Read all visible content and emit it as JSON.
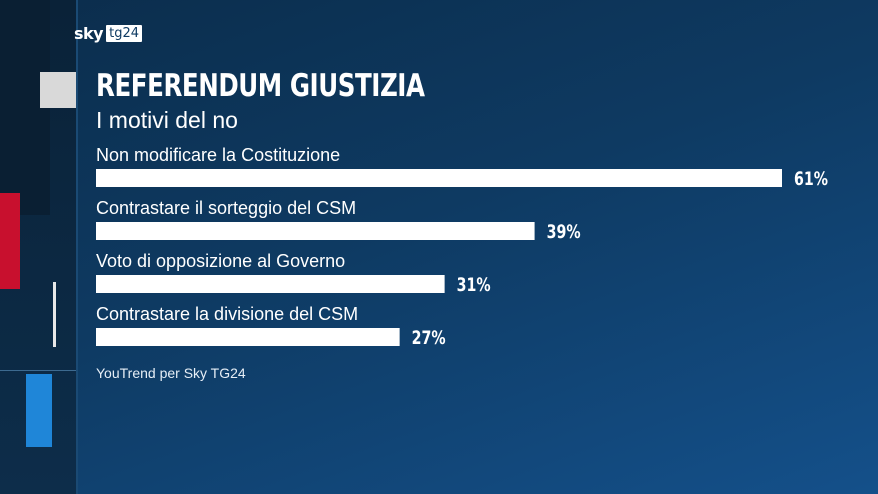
{
  "header": {
    "logo_sky": "sky",
    "logo_tg24": "tg24",
    "title": "REFERENDUM GIUSTIZIA",
    "subtitle": "I motivi del no"
  },
  "source": "YouTrend per Sky TG24",
  "colors": {
    "bar": "#ffffff",
    "accent_red": "#c8102e",
    "accent_blue": "#1f86d8",
    "background": "#0e3a62"
  },
  "chart_data": {
    "type": "bar",
    "orientation": "horizontal",
    "title": "REFERENDUM GIUSTIZIA",
    "subtitle": "I motivi del no",
    "categories": [
      "Non modificare la Costituzione",
      "Contrastare il sorteggio del CSM",
      "Voto di opposizione al Governo",
      "Contrastare la divisione del CSM"
    ],
    "values": [
      61,
      39,
      31,
      27
    ],
    "value_labels": [
      "61%",
      "39%",
      "31%",
      "27%"
    ],
    "unit": "%",
    "xlim": [
      0,
      61
    ],
    "grid": false,
    "legend": "none"
  }
}
